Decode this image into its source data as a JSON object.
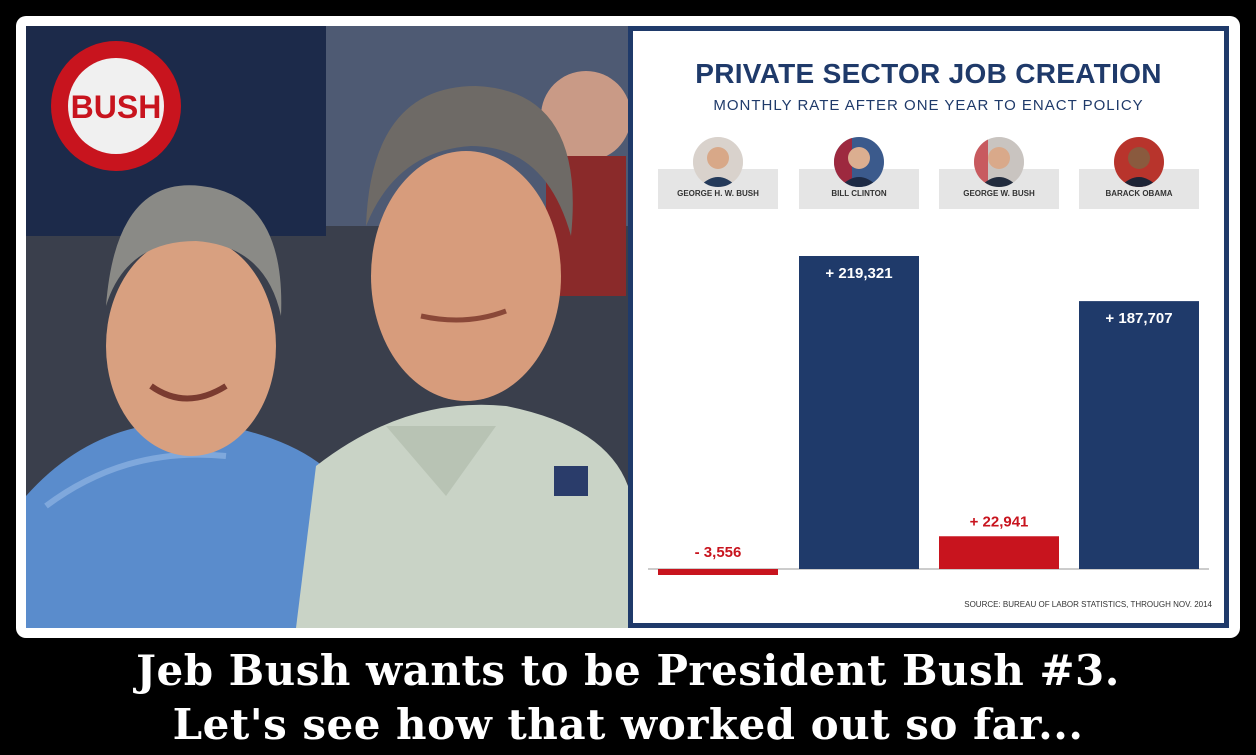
{
  "chart_data": {
    "type": "bar",
    "title": "PRIVATE SECTOR JOB CREATION",
    "subtitle": "MONTHLY RATE AFTER ONE YEAR TO ENACT POLICY",
    "categories": [
      "GEORGE H. W. BUSH",
      "BILL CLINTON",
      "GEORGE W. BUSH",
      "BARACK OBAMA"
    ],
    "values": [
      -3556,
      219321,
      22941,
      187707
    ],
    "data_labels": [
      "- 3,556",
      "+ 219,321",
      "+ 22,941",
      "+ 187,707"
    ],
    "bar_colors": [
      "#c8141e",
      "#1f3a6a",
      "#c8141e",
      "#1f3a6a"
    ],
    "source": "SOURCE: BUREAU OF LABOR STATISTICS, THROUGH NOV. 2014",
    "xlabel": "",
    "ylabel": "",
    "grid": false
  },
  "photo": {
    "sign_text": "BUSH"
  },
  "caption": {
    "line1": "Jeb Bush wants to be President Bush #3.",
    "line2": "Let's see how that worked out so far..."
  }
}
